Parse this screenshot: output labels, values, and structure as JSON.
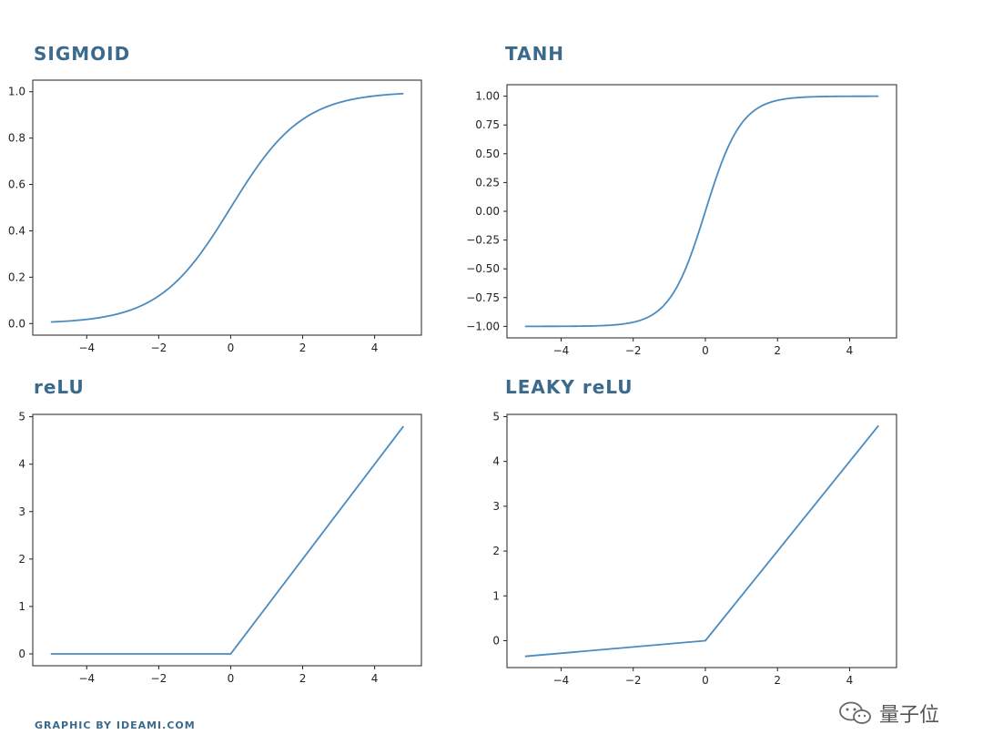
{
  "titles": {
    "sigmoid": "SIGMOID",
    "tanh": "TANH",
    "relu": "reLU",
    "leaky_relu": "LEAKY reLU"
  },
  "credit": "GRAPHIC BY IDEAMI.COM",
  "watermark": {
    "text": "量子位",
    "icon": "wechat-logo-icon"
  },
  "colors": {
    "line": "#4a8bc0",
    "title": "#3b6a8c",
    "axis": "#222222"
  },
  "chart_data": [
    {
      "type": "line",
      "title": "SIGMOID",
      "function": "sigmoid",
      "xlim": [
        -5.5,
        5.3
      ],
      "ylim": [
        -0.05,
        1.05
      ],
      "x": [
        -5,
        -4,
        -3,
        -2,
        -1,
        0,
        1,
        2,
        3,
        4,
        4.8
      ],
      "y": [
        0.007,
        0.018,
        0.047,
        0.119,
        0.269,
        0.5,
        0.731,
        0.881,
        0.953,
        0.982,
        0.992
      ],
      "xticks": [
        -4,
        -2,
        0,
        2,
        4
      ],
      "xtick_labels": [
        "−4",
        "−2",
        "0",
        "2",
        "4"
      ],
      "yticks": [
        0.0,
        0.2,
        0.4,
        0.6,
        0.8,
        1.0
      ],
      "ytick_labels": [
        "0.0",
        "0.2",
        "0.4",
        "0.6",
        "0.8",
        "1.0"
      ]
    },
    {
      "type": "line",
      "title": "TANH",
      "function": "tanh",
      "xlim": [
        -5.5,
        5.3
      ],
      "ylim": [
        -1.1,
        1.1
      ],
      "x": [
        -5,
        -4,
        -3,
        -2,
        -1,
        0,
        1,
        2,
        3,
        4,
        4.8
      ],
      "y": [
        -1.0,
        -0.999,
        -0.995,
        -0.964,
        -0.762,
        0.0,
        0.762,
        0.964,
        0.995,
        0.999,
        1.0
      ],
      "xticks": [
        -4,
        -2,
        0,
        2,
        4
      ],
      "xtick_labels": [
        "−4",
        "−2",
        "0",
        "2",
        "4"
      ],
      "yticks": [
        -1.0,
        -0.75,
        -0.5,
        -0.25,
        0.0,
        0.25,
        0.5,
        0.75,
        1.0
      ],
      "ytick_labels": [
        "−1.00",
        "−0.75",
        "−0.50",
        "−0.25",
        "0.00",
        "0.25",
        "0.50",
        "0.75",
        "1.00"
      ]
    },
    {
      "type": "line",
      "title": "reLU",
      "function": "relu",
      "xlim": [
        -5.5,
        5.3
      ],
      "ylim": [
        -0.25,
        5.05
      ],
      "x": [
        -5,
        0,
        4.8
      ],
      "y": [
        0,
        0,
        4.8
      ],
      "xticks": [
        -4,
        -2,
        0,
        2,
        4
      ],
      "xtick_labels": [
        "−4",
        "−2",
        "0",
        "2",
        "4"
      ],
      "yticks": [
        0,
        1,
        2,
        3,
        4,
        5
      ],
      "ytick_labels": [
        "0",
        "1",
        "2",
        "3",
        "4",
        "5"
      ]
    },
    {
      "type": "line",
      "title": "LEAKY reLU",
      "function": "leaky_relu",
      "xlim": [
        -5.5,
        5.3
      ],
      "ylim": [
        -0.6,
        5.05
      ],
      "x": [
        -5,
        0,
        4.8
      ],
      "y": [
        -0.35,
        0,
        4.8
      ],
      "xticks": [
        -4,
        -2,
        0,
        2,
        4
      ],
      "xtick_labels": [
        "−4",
        "−2",
        "0",
        "2",
        "4"
      ],
      "yticks": [
        0,
        1,
        2,
        3,
        4,
        5
      ],
      "ytick_labels": [
        "0",
        "1",
        "2",
        "3",
        "4",
        "5"
      ]
    }
  ]
}
